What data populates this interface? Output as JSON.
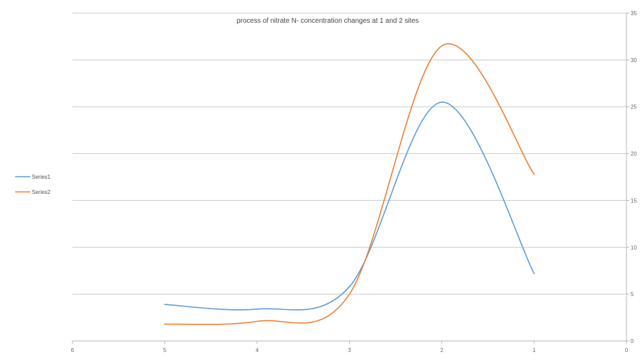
{
  "chart_data": {
    "type": "line",
    "title": "process of nitrate N- concentration changes at 1 and 2 sites",
    "x": [
      5,
      4,
      3,
      2,
      1
    ],
    "xlim": [
      6,
      0
    ],
    "x_ticks": [
      "6",
      "5",
      "4",
      "3",
      "2",
      "1",
      "0"
    ],
    "ylim": [
      0,
      35
    ],
    "y_ticks": [
      "0",
      "5",
      "10",
      "15",
      "20",
      "25",
      "30",
      "35"
    ],
    "grid": true,
    "smooth": true,
    "legend_position": "left",
    "series": [
      {
        "name": "Series1",
        "color": "#5b9bd5",
        "values": [
          3.9,
          3.4,
          5.8,
          25.5,
          7.2
        ]
      },
      {
        "name": "Series2",
        "color": "#ed7d31",
        "values": [
          1.8,
          2.1,
          5.0,
          31.5,
          17.8
        ]
      }
    ]
  }
}
